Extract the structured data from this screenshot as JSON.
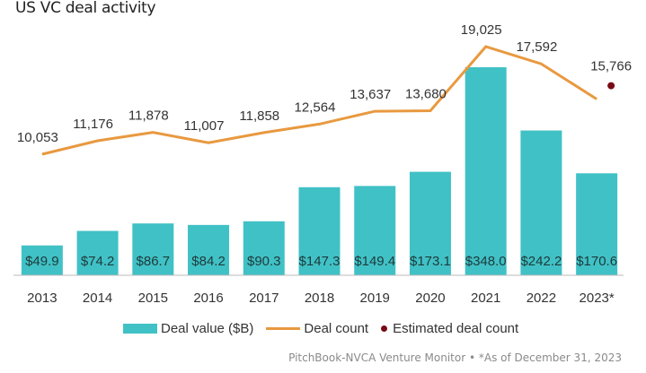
{
  "chart_data": {
    "type": "bar",
    "title": "US VC deal activity",
    "xlabel": "",
    "ylabel": "",
    "categories": [
      "2013",
      "2014",
      "2015",
      "2016",
      "2017",
      "2018",
      "2019",
      "2020",
      "2021",
      "2022",
      "2023*"
    ],
    "series": [
      {
        "name": "Deal value ($B)",
        "type": "bar",
        "color": "#40c1c6",
        "values": [
          49.9,
          74.2,
          86.7,
          84.2,
          90.3,
          147.3,
          149.4,
          173.1,
          348.0,
          242.2,
          170.6
        ],
        "labels": [
          "$49.9",
          "$74.2",
          "$86.7",
          "$84.2",
          "$90.3",
          "$147.3",
          "$149.4",
          "$173.1",
          "$348.0",
          "$242.2",
          "$170.6"
        ]
      },
      {
        "name": "Deal count",
        "type": "line",
        "color": "#e8993f",
        "values": [
          10053,
          11176,
          11878,
          11007,
          11858,
          12564,
          13637,
          13680,
          19025,
          17592,
          14650
        ],
        "labels": [
          "10,053",
          "11,176",
          "11,878",
          "11,007",
          "11,858",
          "12,564",
          "13,637",
          "13,680",
          "19,025",
          "17,592",
          ""
        ]
      },
      {
        "name": "Estimated deal count",
        "type": "scatter",
        "color": "#7a0a14",
        "values": [
          null,
          null,
          null,
          null,
          null,
          null,
          null,
          null,
          null,
          null,
          15766
        ],
        "labels": [
          "",
          "",
          "",
          "",
          "",
          "",
          "",
          "",
          "",
          "",
          "15,766"
        ]
      }
    ],
    "ylim_value": [
      0,
      400
    ],
    "ylim_count": [
      0,
      20000
    ],
    "grid": false,
    "legend_position": "bottom"
  },
  "legend": {
    "items": [
      {
        "label": "Deal value ($B)",
        "kind": "bar",
        "color": "#40c1c6"
      },
      {
        "label": "Deal count",
        "kind": "line",
        "color": "#e8993f"
      },
      {
        "label": "Estimated deal count",
        "kind": "dot",
        "color": "#7a0a14"
      }
    ]
  },
  "source": "PitchBook-NVCA Venture Monitor  •  *As of December 31, 2023"
}
